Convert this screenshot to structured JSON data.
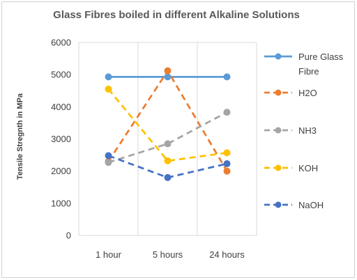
{
  "chart_data": {
    "type": "line",
    "title": "Glass Fibres boiled in different Alkaline Solutions",
    "xlabel": "",
    "ylabel": "Tensile Stregnth in MPa",
    "categories": [
      "1 hour",
      "5 hours",
      "24 hours"
    ],
    "ylim": [
      0,
      6000
    ],
    "yticks": [
      "0",
      "1000",
      "2000",
      "3000",
      "4000",
      "5000",
      "6000"
    ],
    "grid": "vertical",
    "legend_position": "right",
    "series": [
      {
        "name": "Pure Glass Fibre",
        "values": [
          4930,
          4930,
          4930
        ],
        "color": "#5b9bd5",
        "dash": "solid"
      },
      {
        "name": "H2O",
        "values": [
          2300,
          5120,
          2000
        ],
        "color": "#ed7d31",
        "dash": "dashed"
      },
      {
        "name": "NH3",
        "values": [
          2270,
          2850,
          3830
        ],
        "color": "#a5a5a5",
        "dash": "dashed"
      },
      {
        "name": "KOH",
        "values": [
          4550,
          2320,
          2570
        ],
        "color": "#ffc000",
        "dash": "dashed"
      },
      {
        "name": "NaOH",
        "values": [
          2480,
          1800,
          2230
        ],
        "color": "#4472c4",
        "dash": "dashed"
      }
    ]
  }
}
